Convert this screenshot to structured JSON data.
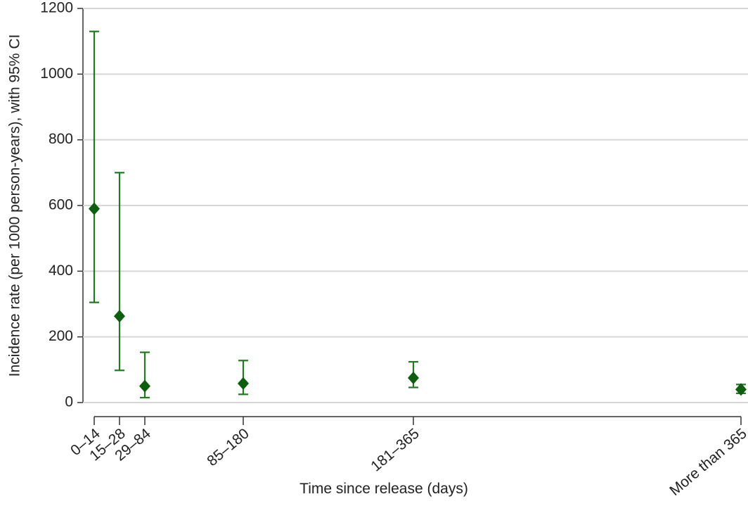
{
  "chart_data": {
    "type": "errorbar",
    "x_label": "Time since release (days)",
    "y_label": "Incidence rate (per 1000 person-years), with 95% CI",
    "categories": [
      "0–14",
      "15–28",
      "29–84",
      "85–180",
      "181–365",
      "More than 365"
    ],
    "series": [
      {
        "name": "Incidence rate",
        "color": "#1e7b1e",
        "marker_color": "#0d5f0d",
        "values": [
          590,
          263,
          50,
          58,
          75,
          40
        ],
        "lower": [
          305,
          98,
          15,
          25,
          46,
          28
        ],
        "upper": [
          1130,
          700,
          153,
          128,
          124,
          55
        ]
      }
    ],
    "ylim": [
      0,
      1200
    ],
    "yticks": [
      0,
      200,
      400,
      600,
      800,
      1000,
      1200
    ],
    "grid": true
  }
}
